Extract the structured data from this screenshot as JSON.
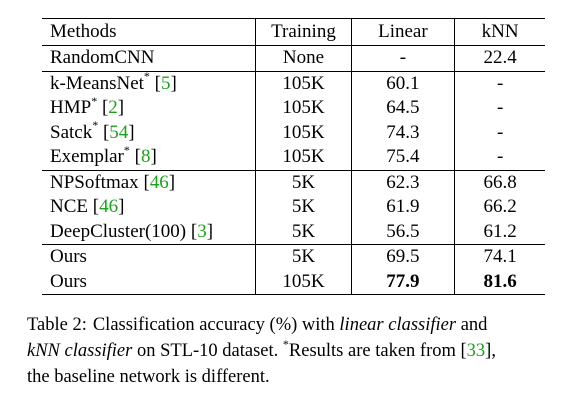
{
  "table": {
    "headers": {
      "method": "Methods",
      "training": "Training",
      "linear": "Linear",
      "knn": "kNN"
    },
    "rows": [
      {
        "name": "RandomCNN",
        "star": "",
        "cite": "",
        "training": "None",
        "linear": "-",
        "knn": "22.4"
      },
      {
        "name": "k-MeansNet",
        "star": "*",
        "cite": "5",
        "training": "105K",
        "linear": "60.1",
        "knn": "-"
      },
      {
        "name": "HMP",
        "star": "*",
        "cite": "2",
        "training": "105K",
        "linear": "64.5",
        "knn": "-"
      },
      {
        "name": "Satck",
        "star": "*",
        "cite": "54",
        "training": "105K",
        "linear": "74.3",
        "knn": "-"
      },
      {
        "name": "Exemplar",
        "star": "*",
        "cite": "8",
        "training": "105K",
        "linear": "75.4",
        "knn": "-"
      },
      {
        "name": "NPSoftmax",
        "star": "",
        "cite": "46",
        "training": "5K",
        "linear": "62.3",
        "knn": "66.8"
      },
      {
        "name": "NCE",
        "star": "",
        "cite": "46",
        "training": "5K",
        "linear": "61.9",
        "knn": "66.2"
      },
      {
        "name": "DeepCluster(100)",
        "star": "",
        "cite": "3",
        "training": "5K",
        "linear": "56.5",
        "knn": "61.2"
      },
      {
        "name": "Ours",
        "star": "",
        "cite": "",
        "training": "5K",
        "linear": "69.5",
        "knn": "74.1"
      },
      {
        "name": "Ours",
        "star": "",
        "cite": "",
        "training": "105K",
        "linear": "77.9",
        "knn": "81.6"
      }
    ]
  },
  "caption": {
    "label": "Table 2:",
    "t1": "Classification accuracy (%) with",
    "t2": "linear classifier",
    "t3": "and",
    "t4": "kNN classifier",
    "t5": "on STL-10 dataset.",
    "t6": "*",
    "t7": "Results are taken from [",
    "t8": "33",
    "t9": "],",
    "t10": "the baseline network is different."
  },
  "colors": {
    "citation": "#1aa31a"
  }
}
